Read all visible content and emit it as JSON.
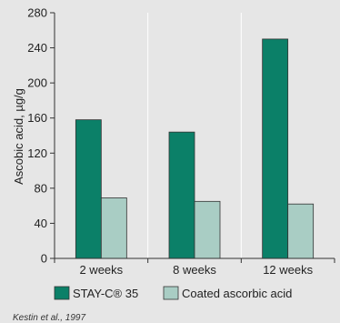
{
  "chart_data": {
    "type": "bar",
    "categories": [
      "2 weeks",
      "8 weeks",
      "12 weeks"
    ],
    "series": [
      {
        "name": "STAY-C® 35",
        "values": [
          158,
          144,
          250
        ],
        "color": "#0b8068"
      },
      {
        "name": "Coated ascorbic acid",
        "values": [
          69,
          65,
          62
        ],
        "color": "#a9cdc4"
      }
    ],
    "ylabel": "Ascobic acid, µg/g",
    "xlabel": "",
    "ylim": [
      0,
      280
    ],
    "yticks": [
      0,
      40,
      80,
      120,
      160,
      200,
      240,
      280
    ],
    "grid": "vertical separators between categories",
    "legend": "bottom",
    "source": "Kestin et al., 1997",
    "colors": {
      "background": "#e6e6e6",
      "grid": "#ffffff",
      "axis": "#333333",
      "bar_stroke": "#333333"
    }
  }
}
